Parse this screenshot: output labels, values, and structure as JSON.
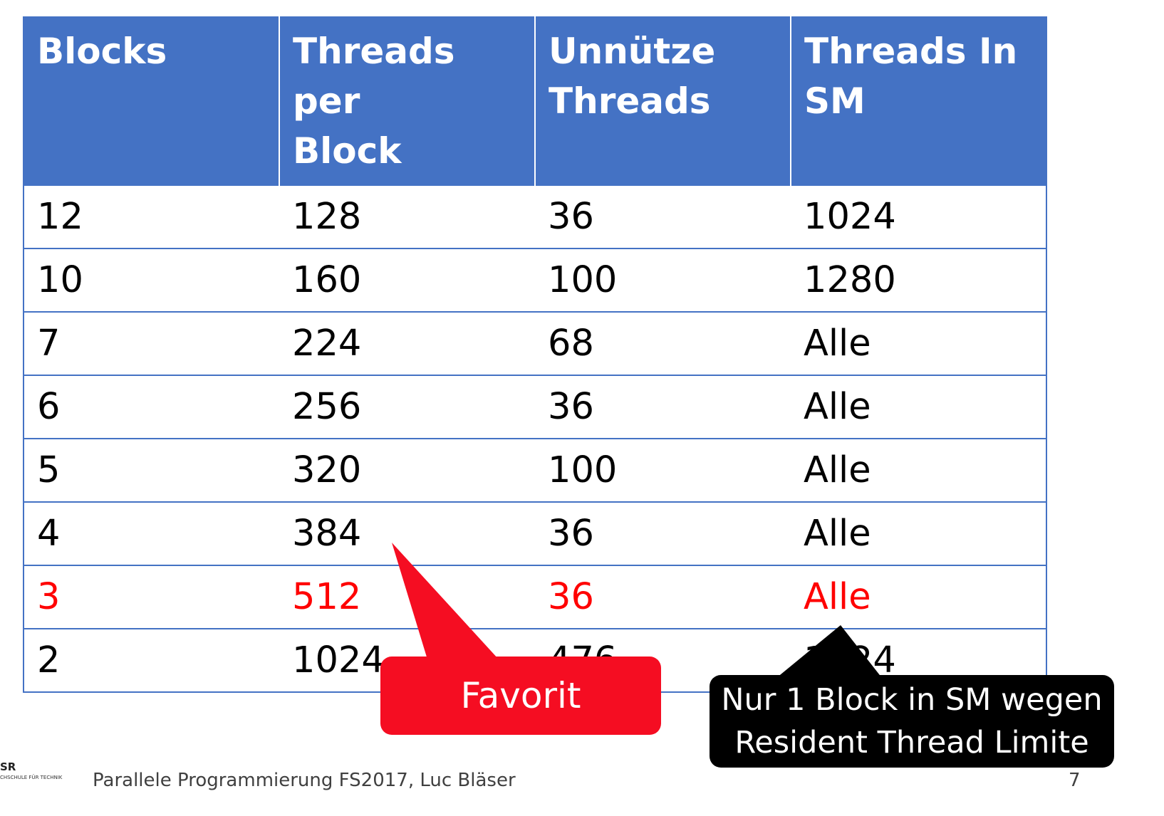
{
  "table": {
    "headers": [
      [
        "Threads per",
        "Block"
      ],
      [
        "Unnütze",
        "Threads"
      ],
      [
        "Threads In",
        "SM"
      ]
    ],
    "header_blocks": "Blocks",
    "rows": [
      [
        "12",
        "128",
        "36",
        "1024"
      ],
      [
        "10",
        "160",
        "100",
        "1280"
      ],
      [
        "7",
        "224",
        "68",
        "Alle"
      ],
      [
        "6",
        "256",
        "36",
        "Alle"
      ],
      [
        "5",
        "320",
        "100",
        "Alle"
      ],
      [
        "4",
        "384",
        "36",
        "Alle"
      ],
      [
        "3",
        "512",
        "36",
        "Alle"
      ],
      [
        "2",
        "1024",
        "476",
        "1024"
      ]
    ],
    "highlight_row": 6
  },
  "callouts": {
    "favorite": "Favorit",
    "note_line1": "Nur 1 Block in SM wegen",
    "note_line2": "Resident Thread Limite"
  },
  "footer": {
    "logo": "SR",
    "logo_sub": "CHSCHULE FÜR TECHNIK",
    "text": "Parallele Programmierung FS2017, Luc Bläser",
    "page": "7"
  },
  "colors": {
    "header_bg": "#4472C4",
    "highlight": "#FF0000",
    "favorite_bg": "#F50D22",
    "note_bg": "#000000"
  }
}
